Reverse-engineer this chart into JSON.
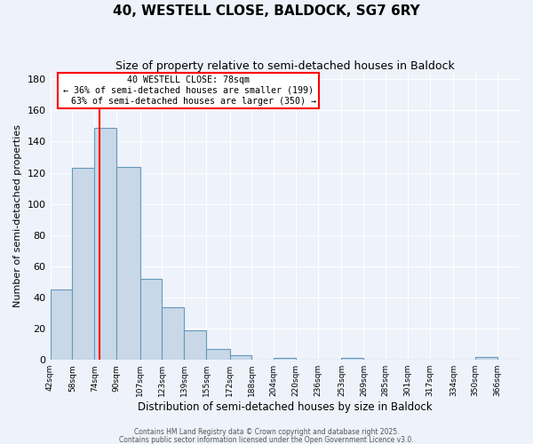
{
  "title": "40, WESTELL CLOSE, BALDOCK, SG7 6RY",
  "subtitle": "Size of property relative to semi-detached houses in Baldock",
  "xlabel": "Distribution of semi-detached houses by size in Baldock",
  "ylabel": "Number of semi-detached properties",
  "footnote1": "Contains HM Land Registry data © Crown copyright and database right 2025.",
  "footnote2": "Contains public sector information licensed under the Open Government Licence v3.0.",
  "bin_labels": [
    "42sqm",
    "58sqm",
    "74sqm",
    "90sqm",
    "107sqm",
    "123sqm",
    "139sqm",
    "155sqm",
    "172sqm",
    "188sqm",
    "204sqm",
    "220sqm",
    "236sqm",
    "253sqm",
    "269sqm",
    "285sqm",
    "301sqm",
    "317sqm",
    "334sqm",
    "350sqm",
    "366sqm"
  ],
  "bar_values": [
    45,
    123,
    149,
    124,
    52,
    34,
    19,
    7,
    3,
    0,
    1,
    0,
    0,
    1,
    0,
    0,
    0,
    0,
    0,
    2,
    0
  ],
  "bin_edges": [
    42,
    58,
    74,
    90,
    107,
    123,
    139,
    155,
    172,
    188,
    204,
    220,
    236,
    253,
    269,
    285,
    301,
    317,
    334,
    350,
    366,
    382
  ],
  "bar_color": "#c8d8e8",
  "bar_edge_color": "#6699bb",
  "vline_x": 78,
  "vline_color": "red",
  "annotation_title": "40 WESTELL CLOSE: 78sqm",
  "annotation_line1": "← 36% of semi-detached houses are smaller (199)",
  "annotation_line2": "63% of semi-detached houses are larger (350) →",
  "annotation_box_color": "white",
  "annotation_box_edge": "red",
  "ylim": [
    0,
    185
  ],
  "yticks": [
    0,
    20,
    40,
    60,
    80,
    100,
    120,
    140,
    160,
    180
  ],
  "background_color": "#eef2fa",
  "grid_color": "white",
  "title_fontsize": 11,
  "subtitle_fontsize": 9,
  "ylabel_fontsize": 8,
  "xlabel_fontsize": 8.5,
  "footnote_fontsize": 5.5
}
